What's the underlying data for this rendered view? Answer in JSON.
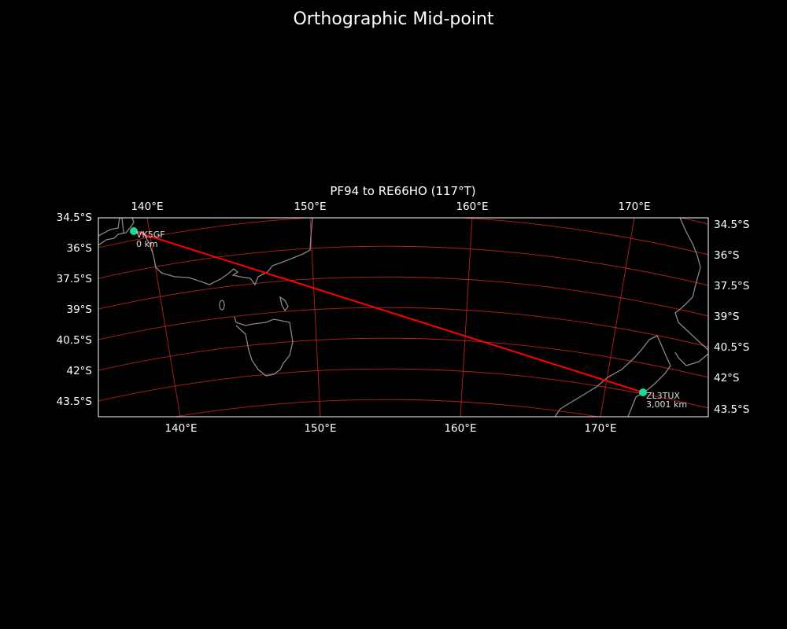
{
  "title": "Orthographic Mid-point",
  "map": {
    "subtitle": "PF94 to RE66HO (117°T)",
    "top_lon_ticks": [
      "140°E",
      "150°E",
      "160°E",
      "170°E"
    ],
    "bottom_lon_ticks": [
      "140°E",
      "150°E",
      "160°E",
      "170°E"
    ],
    "left_lat_ticks": [
      "34.5°S",
      "36°S",
      "37.5°S",
      "39°S",
      "40.5°S",
      "42°S",
      "43.5°S"
    ],
    "right_lat_ticks": [
      "34.5°S",
      "36°S",
      "37.5°S",
      "39°S",
      "40.5°S",
      "42°S",
      "43.5°S"
    ],
    "stations": [
      {
        "call": "VK5GF",
        "distance": "0 km"
      },
      {
        "call": "ZL3TUX",
        "distance": "3,001 km"
      }
    ],
    "colors": {
      "background": "#000000",
      "graticule": "#b22222",
      "path": "#ff0000",
      "station": "#1ad9a0",
      "coast": "#888888",
      "frame": "#ffffff"
    }
  }
}
